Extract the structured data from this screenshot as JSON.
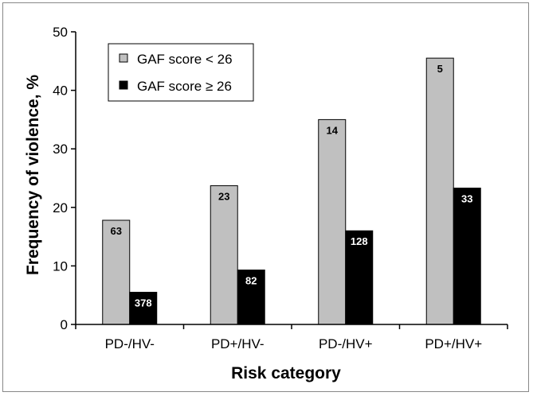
{
  "chart_data": {
    "type": "bar",
    "title": "",
    "xlabel": "Risk category",
    "ylabel": "Frequency of violence, %",
    "categories": [
      "PD-/HV-",
      "PD+/HV-",
      "PD-/HV+",
      "PD+/HV+"
    ],
    "series": [
      {
        "name": "GAF score < 26",
        "values": [
          17.8,
          23.7,
          35.0,
          45.5
        ],
        "labels": [
          "63",
          "23",
          "14",
          "5"
        ],
        "color": "#c0c0c0",
        "label_color": "#000000"
      },
      {
        "name": "GAF score ≥ 26",
        "values": [
          5.5,
          9.3,
          16.0,
          23.3
        ],
        "labels": [
          "378",
          "82",
          "128",
          "33"
        ],
        "color": "#000000",
        "label_color": "#ffffff"
      }
    ],
    "ylim": [
      0,
      50
    ],
    "yticks": [
      0,
      10,
      20,
      30,
      40,
      50
    ],
    "grid": false,
    "legend_position": "top-left"
  }
}
